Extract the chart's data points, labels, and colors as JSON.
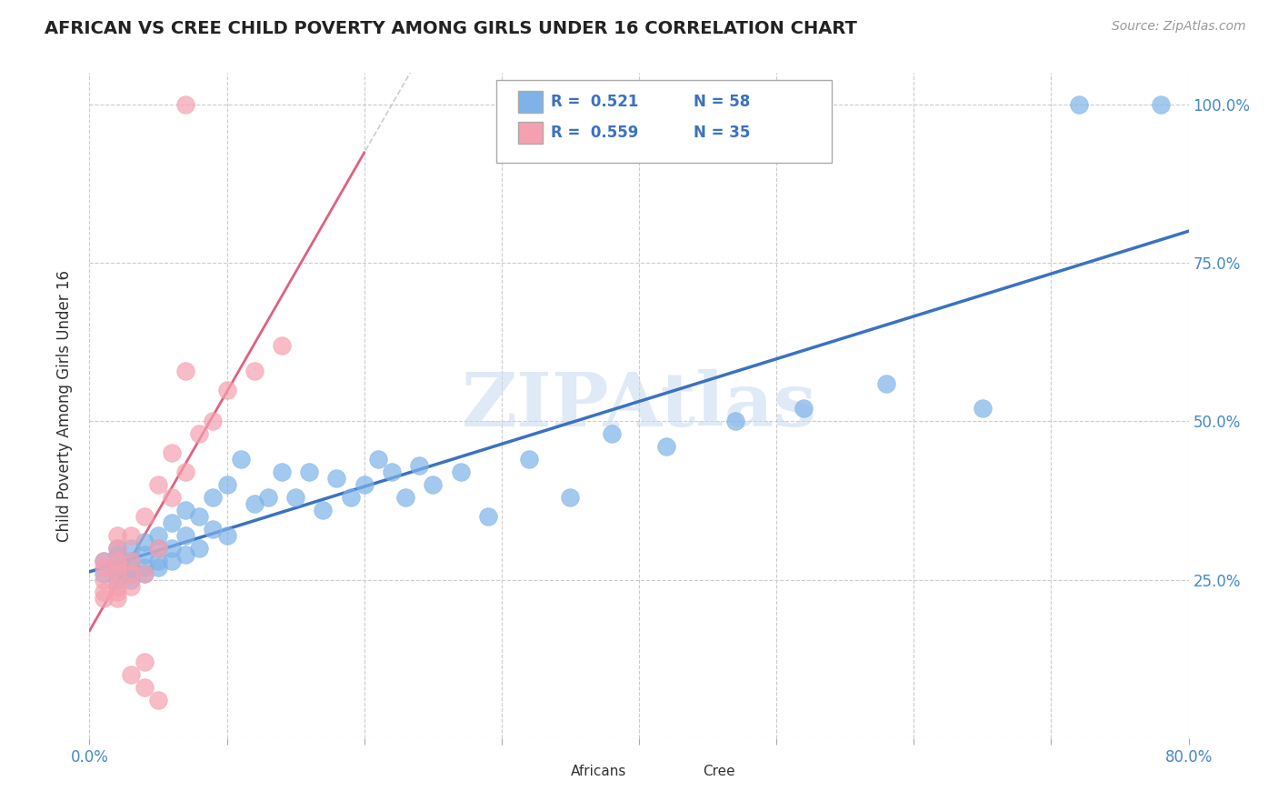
{
  "title": "AFRICAN VS CREE CHILD POVERTY AMONG GIRLS UNDER 16 CORRELATION CHART",
  "source_text": "Source: ZipAtlas.com",
  "ylabel": "Child Poverty Among Girls Under 16",
  "watermark": "ZIPAtlas",
  "xmin": 0.0,
  "xmax": 0.8,
  "ymin": 0.0,
  "ymax": 1.05,
  "legend_r_african": "0.521",
  "legend_n_african": "58",
  "legend_r_cree": "0.559",
  "legend_n_cree": "35",
  "african_color": "#7EB3E8",
  "cree_color": "#F5A0B0",
  "african_line_color": "#3A72C0",
  "cree_line_color": "#E06080",
  "background_color": "#FFFFFF",
  "grid_color": "#CCCCCC",
  "africans_x": [
    0.01,
    0.01,
    0.02,
    0.02,
    0.02,
    0.02,
    0.03,
    0.03,
    0.03,
    0.03,
    0.03,
    0.04,
    0.04,
    0.04,
    0.04,
    0.05,
    0.05,
    0.05,
    0.05,
    0.06,
    0.06,
    0.06,
    0.07,
    0.07,
    0.07,
    0.08,
    0.08,
    0.09,
    0.09,
    0.1,
    0.1,
    0.11,
    0.12,
    0.13,
    0.14,
    0.15,
    0.16,
    0.17,
    0.18,
    0.19,
    0.2,
    0.21,
    0.22,
    0.23,
    0.24,
    0.25,
    0.27,
    0.29,
    0.32,
    0.35,
    0.38,
    0.42,
    0.47,
    0.52,
    0.58,
    0.65,
    0.72,
    0.78
  ],
  "africans_y": [
    0.26,
    0.28,
    0.25,
    0.27,
    0.29,
    0.3,
    0.25,
    0.26,
    0.27,
    0.28,
    0.3,
    0.26,
    0.27,
    0.29,
    0.31,
    0.27,
    0.28,
    0.3,
    0.32,
    0.28,
    0.3,
    0.34,
    0.29,
    0.32,
    0.36,
    0.3,
    0.35,
    0.33,
    0.38,
    0.32,
    0.4,
    0.44,
    0.37,
    0.38,
    0.42,
    0.38,
    0.42,
    0.36,
    0.41,
    0.38,
    0.4,
    0.44,
    0.42,
    0.38,
    0.43,
    0.4,
    0.42,
    0.35,
    0.44,
    0.38,
    0.48,
    0.46,
    0.5,
    0.52,
    0.56,
    0.52,
    1.0,
    1.0
  ],
  "cree_x": [
    0.01,
    0.01,
    0.01,
    0.01,
    0.01,
    0.02,
    0.02,
    0.02,
    0.02,
    0.02,
    0.02,
    0.02,
    0.02,
    0.03,
    0.03,
    0.03,
    0.03,
    0.04,
    0.04,
    0.05,
    0.05,
    0.06,
    0.06,
    0.07,
    0.08,
    0.09,
    0.1,
    0.12,
    0.14,
    0.07,
    0.03,
    0.04,
    0.04,
    0.05,
    0.07
  ],
  "cree_y": [
    0.22,
    0.23,
    0.25,
    0.27,
    0.28,
    0.22,
    0.23,
    0.24,
    0.26,
    0.27,
    0.28,
    0.3,
    0.32,
    0.24,
    0.26,
    0.28,
    0.32,
    0.26,
    0.35,
    0.3,
    0.4,
    0.38,
    0.45,
    0.42,
    0.48,
    0.5,
    0.55,
    0.58,
    0.62,
    0.58,
    0.1,
    0.08,
    0.12,
    0.06,
    1.0
  ]
}
